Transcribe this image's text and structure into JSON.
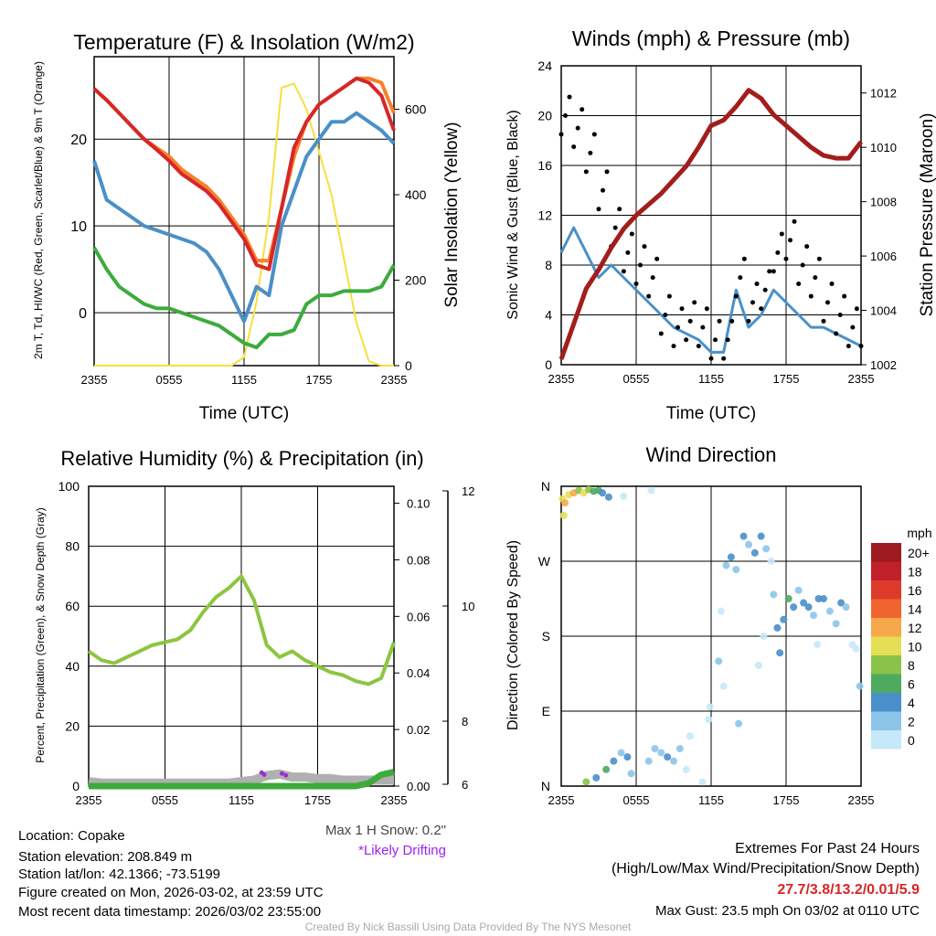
{
  "chart_data": [
    {
      "type": "line",
      "title": "Temperature (F) & Insolation (W/m2)",
      "xlabel": "Time (UTC)",
      "ylabel": "2m T, Td, HI/WC (Red, Green, Scarlet/Blue) & 9m T (Orange)",
      "ylabel2": "Solar Insolation (Yellow)",
      "xticks": [
        "2355",
        "0555",
        "1155",
        "1755",
        "2355"
      ],
      "yticks": [
        0,
        10,
        20
      ],
      "y2ticks": [
        0,
        200,
        400,
        600
      ],
      "ylim": [
        -6.1,
        29.5
      ],
      "y2lim": [
        0,
        723
      ],
      "x_hours": 24,
      "series": [
        {
          "name": "2m T",
          "color": "#d62728",
          "values": [
            25.8,
            24.5,
            23,
            21.5,
            20,
            18.8,
            17.5,
            16,
            15,
            14,
            12.5,
            10.5,
            8.5,
            5.5,
            5,
            12,
            19,
            22,
            24,
            25,
            26,
            27,
            26.5,
            25,
            21
          ]
        },
        {
          "name": "9m T",
          "color": "#f7812a",
          "values": [
            25.8,
            24.5,
            23,
            21.5,
            20,
            19,
            18,
            16.5,
            15.5,
            14.5,
            13,
            11,
            9,
            6,
            6,
            12,
            18,
            22,
            24,
            25,
            26,
            27,
            27,
            26.5,
            23
          ]
        },
        {
          "name": "Td",
          "color": "#3cab3c",
          "values": [
            7.5,
            5,
            3,
            2,
            1,
            0.5,
            0.5,
            0,
            -0.5,
            -1,
            -1.5,
            -2.5,
            -3.5,
            -4,
            -2.5,
            -2.5,
            -2,
            1,
            2,
            2,
            2.5,
            2.5,
            2.5,
            3,
            5.5
          ]
        },
        {
          "name": "HI/WC",
          "color": "#4a90c8",
          "values": [
            17.5,
            13,
            12,
            11,
            10,
            9.5,
            9,
            8.5,
            8,
            7,
            5,
            2,
            -1,
            3,
            2,
            10,
            14,
            18,
            20,
            22,
            22,
            23,
            22,
            21,
            19.5
          ]
        },
        {
          "name": "Solar",
          "color": "#f5e03c",
          "axis": "right",
          "values": [
            0,
            0,
            0,
            0,
            0,
            0,
            0,
            0,
            0,
            0,
            0,
            0,
            20,
            150,
            350,
            650,
            660,
            600,
            500,
            400,
            250,
            100,
            10,
            0,
            0
          ]
        }
      ]
    },
    {
      "type": "line",
      "title": "Winds (mph) & Pressure (mb)",
      "xlabel": "Time (UTC)",
      "ylabel": "Sonic Wind & Gust (Blue, Black)",
      "ylabel2": "Station Pressure (Maroon)",
      "xticks": [
        "2355",
        "0555",
        "1155",
        "1755",
        "2355"
      ],
      "yticks": [
        0,
        4,
        8,
        12,
        16,
        20,
        24
      ],
      "y2ticks": [
        1002,
        1004,
        1006,
        1008,
        1010,
        1012
      ],
      "ylim": [
        0,
        24
      ],
      "y2lim": [
        1002,
        1013
      ],
      "series": [
        {
          "name": "Wind",
          "color": "#4a90c8",
          "values": [
            9,
            11,
            9,
            7,
            8,
            7,
            6,
            5,
            4,
            3,
            2.5,
            2,
            1,
            1,
            6,
            3,
            4,
            6,
            5,
            4,
            3,
            3,
            2.5,
            2,
            1.5
          ]
        },
        {
          "name": "Gust",
          "color": "#000000",
          "type": "scatter",
          "values": [
            20,
            19,
            17,
            14,
            11,
            9,
            8,
            7,
            4,
            3,
            3.5,
            3,
            2,
            2,
            7,
            5,
            6,
            9,
            10,
            8,
            7,
            5,
            4,
            3,
            3
          ]
        },
        {
          "name": "Pressure",
          "color": "#a31d1d",
          "axis": "right",
          "values": [
            1002.2,
            1003.5,
            1004.8,
            1005.5,
            1006.3,
            1007,
            1007.5,
            1007.9,
            1008.3,
            1008.8,
            1009.3,
            1010,
            1010.8,
            1011,
            1011.5,
            1012.1,
            1011.8,
            1011.2,
            1010.8,
            1010.4,
            1010,
            1009.7,
            1009.6,
            1009.6,
            1010.2
          ]
        }
      ]
    },
    {
      "type": "line",
      "title": "Relative Humidity (%) & Precipitation (in)",
      "ylabel": "Percent, Precipitation (Green), & Snow Depth (Gray)",
      "xticks": [
        "2355",
        "0555",
        "1155",
        "1755",
        "2355"
      ],
      "yticks": [
        0,
        20,
        40,
        60,
        80,
        100
      ],
      "y2ticks": [
        "0.00",
        "0.02",
        "0.04",
        "0.06",
        "0.08",
        "0.10"
      ],
      "y3ticks": [
        "6",
        "8",
        "10",
        "12"
      ],
      "ylim": [
        0,
        100
      ],
      "y2lim": [
        0,
        0.106
      ],
      "series": [
        {
          "name": "RH",
          "color": "#8cc63f",
          "values": [
            45,
            42,
            41,
            43,
            45,
            47,
            48,
            49,
            52,
            58,
            63,
            66,
            70,
            62,
            47,
            43,
            45,
            42,
            40,
            38,
            37,
            35,
            34,
            36,
            48
          ]
        },
        {
          "name": "Precip",
          "color": "#3cab3c",
          "values": [
            0,
            0,
            0,
            0,
            0,
            0,
            0,
            0,
            0,
            0,
            0,
            0,
            0,
            0,
            0,
            0,
            0,
            0,
            0,
            0,
            0,
            0,
            0.001,
            0.004,
            0.005
          ]
        },
        {
          "name": "Snow Depth",
          "color": "#b0b0b0",
          "values": [
            1.5,
            1,
            1,
            1,
            1,
            1,
            1,
            1,
            1,
            1,
            1,
            1,
            1.5,
            2,
            3.5,
            4,
            3,
            3,
            2.5,
            2.5,
            2,
            2,
            2,
            2,
            2
          ]
        },
        {
          "name": "Likely Drifting",
          "color": "#9b30d0",
          "type": "scatter",
          "x": [
            13.6,
            13.8,
            15.2,
            15.5
          ],
          "values": [
            4.5,
            3.8,
            4.2,
            3.6
          ]
        }
      ],
      "annotations": [
        "Max 1 H Snow: 0.2\"",
        "*Likely Drifting"
      ]
    },
    {
      "type": "scatter",
      "title": "Wind Direction",
      "ylabel": "Direction (Colored By Speed)",
      "xticks": [
        "2355",
        "0555",
        "1155",
        "1755",
        "2355"
      ],
      "yticks": [
        "N",
        "E",
        "S",
        "W",
        "N"
      ],
      "ylim": [
        0,
        360
      ],
      "legend_title": "mph",
      "legend": [
        "20+",
        "18",
        "16",
        "14",
        "12",
        "10",
        "8",
        "6",
        "4",
        "2",
        "0"
      ],
      "legend_colors": [
        "#9b1b1e",
        "#c0202a",
        "#de3a2c",
        "#f0652f",
        "#f7a84a",
        "#e5df55",
        "#8bc34a",
        "#4daa5f",
        "#4a8fc9",
        "#8cc5ea",
        "#c6e9f9"
      ],
      "points": [
        [
          0.1,
          345,
          10
        ],
        [
          0.3,
          340,
          12
        ],
        [
          0.6,
          350,
          11
        ],
        [
          1,
          352,
          12
        ],
        [
          1.4,
          355,
          9
        ],
        [
          1.8,
          352,
          10
        ],
        [
          2.2,
          356,
          8
        ],
        [
          2.6,
          354,
          7
        ],
        [
          3,
          355,
          6
        ],
        [
          3.3,
          352,
          4
        ],
        [
          5,
          348,
          1
        ],
        [
          7.2,
          355,
          1
        ],
        [
          0.2,
          325,
          10
        ],
        [
          3.8,
          347,
          4
        ],
        [
          2,
          5,
          9
        ],
        [
          2.8,
          10,
          5
        ],
        [
          3.6,
          20,
          6
        ],
        [
          4.2,
          30,
          4
        ],
        [
          4.8,
          40,
          3
        ],
        [
          5.3,
          35,
          4
        ],
        [
          5.6,
          15,
          2
        ],
        [
          7,
          30,
          3
        ],
        [
          7.5,
          45,
          2
        ],
        [
          8,
          40,
          3
        ],
        [
          8.5,
          35,
          4
        ],
        [
          9,
          30,
          2
        ],
        [
          9.5,
          45,
          3
        ],
        [
          10,
          20,
          1
        ],
        [
          10.3,
          60,
          1
        ],
        [
          11.3,
          5,
          0
        ],
        [
          11.9,
          95,
          1
        ],
        [
          11.8,
          80,
          0
        ],
        [
          12.6,
          150,
          2
        ],
        [
          12.8,
          210,
          1
        ],
        [
          13.2,
          265,
          3
        ],
        [
          13.6,
          275,
          4
        ],
        [
          14,
          260,
          2
        ],
        [
          14.6,
          300,
          4
        ],
        [
          15,
          290,
          3
        ],
        [
          15.5,
          280,
          4
        ],
        [
          16,
          300,
          5
        ],
        [
          16.4,
          285,
          3
        ],
        [
          16.8,
          270,
          1
        ],
        [
          17,
          230,
          3
        ],
        [
          17.3,
          190,
          5
        ],
        [
          17.8,
          200,
          4
        ],
        [
          18.2,
          225,
          6
        ],
        [
          18.6,
          215,
          4
        ],
        [
          19,
          235,
          3
        ],
        [
          19.4,
          220,
          4
        ],
        [
          19.8,
          215,
          5
        ],
        [
          20.2,
          205,
          3
        ],
        [
          20.6,
          225,
          4
        ],
        [
          21,
          225,
          4
        ],
        [
          21.5,
          210,
          3
        ],
        [
          22,
          195,
          2
        ],
        [
          22.4,
          220,
          4
        ],
        [
          22.8,
          215,
          2
        ],
        [
          23.3,
          170,
          1
        ],
        [
          23.6,
          165,
          1
        ],
        [
          23.9,
          120,
          3
        ],
        [
          13,
          120,
          0
        ],
        [
          14.2,
          75,
          2
        ],
        [
          15.8,
          145,
          1
        ],
        [
          16.2,
          180,
          1
        ],
        [
          17.5,
          160,
          5
        ],
        [
          20.5,
          170,
          1
        ]
      ],
      "side_text": {
        "extremes_title": "Extremes For Past 24 Hours",
        "extremes_sub": "(High/Low/Max Wind/Precipitation/Snow Depth)",
        "extremes_values": "27.7/3.8/13.2/0.01/5.9",
        "max_gust": "Max Gust: 23.5 mph On 03/02 at 0110 UTC"
      }
    }
  ],
  "info": {
    "location": "Location: Copake",
    "elevation": "Station elevation: 208.849 m",
    "latlon": "Station lat/lon: 42.1366; -73.5199",
    "created": "Figure created on Mon, 2026-03-02, at 23:59 UTC",
    "recent": "Most recent data timestamp: 2026/03/02 23:55:00",
    "credit": "Created By Nick Bassill Using Data Provided By The NYS Mesonet"
  }
}
